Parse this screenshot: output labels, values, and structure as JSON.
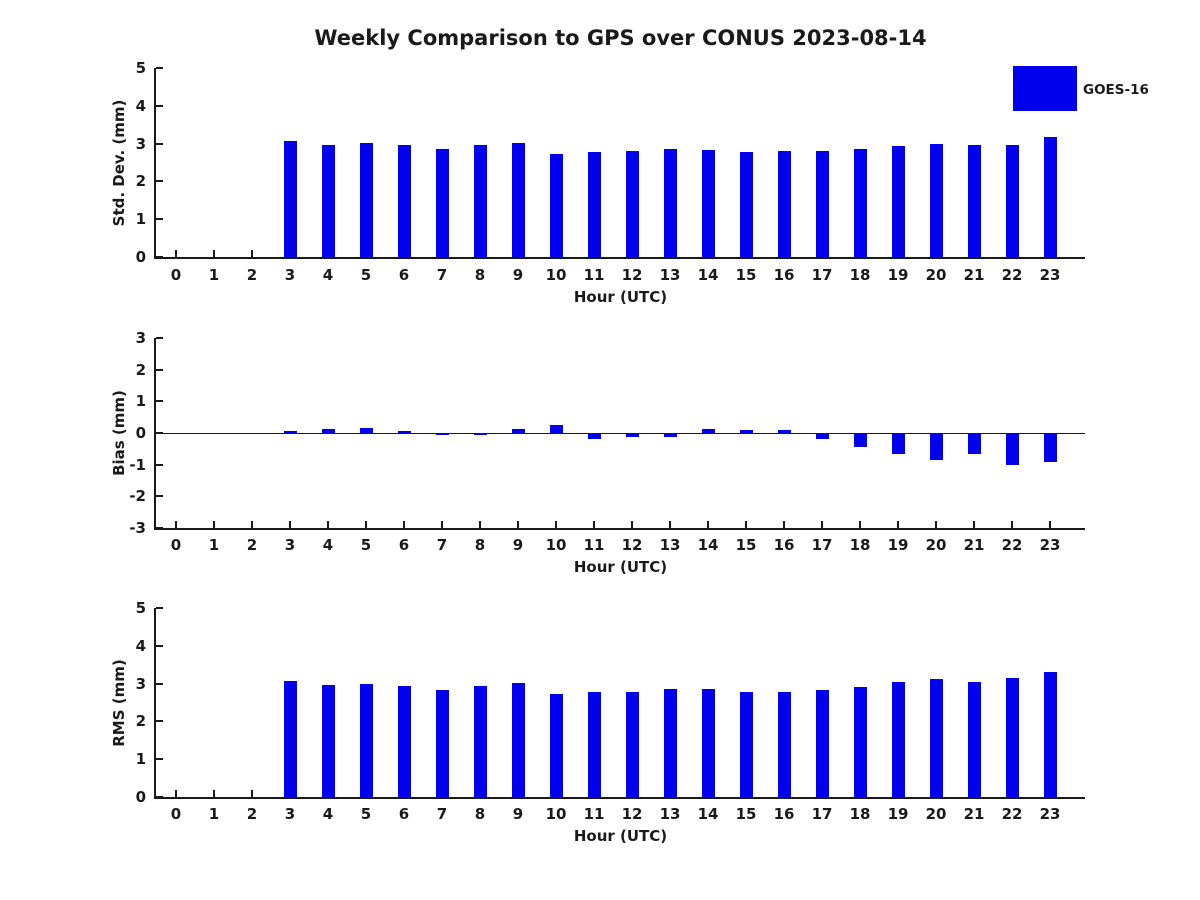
{
  "title": "Weekly Comparison to GPS over CONUS 2023-08-14",
  "legend": {
    "label": "GOES-16",
    "color": "#0000EE",
    "position": "top-right"
  },
  "chart_data": [
    {
      "id": "stddev",
      "type": "bar",
      "ylabel": "Std. Dev. (mm)",
      "xlabel": "Hour (UTC)",
      "ylim": [
        0,
        5
      ],
      "yticks": [
        0,
        1,
        2,
        3,
        4,
        5
      ],
      "grid": false,
      "categories": [
        0,
        1,
        2,
        3,
        4,
        5,
        6,
        7,
        8,
        9,
        10,
        11,
        12,
        13,
        14,
        15,
        16,
        17,
        18,
        19,
        20,
        21,
        22,
        23
      ],
      "series": [
        {
          "name": "GOES-16",
          "color": "#0000EE",
          "values": [
            null,
            null,
            null,
            3.07,
            2.96,
            3.02,
            2.96,
            2.86,
            2.96,
            3.01,
            2.72,
            2.77,
            2.8,
            2.87,
            2.83,
            2.78,
            2.81,
            2.81,
            2.87,
            2.94,
            2.99,
            2.95,
            2.97,
            3.18
          ]
        }
      ]
    },
    {
      "id": "bias",
      "type": "bar",
      "ylabel": "Bias (mm)",
      "xlabel": "Hour (UTC)",
      "ylim": [
        -3,
        3
      ],
      "yticks": [
        3,
        2,
        1,
        0,
        -1,
        -2,
        -3
      ],
      "grid": false,
      "zero_line": true,
      "categories": [
        0,
        1,
        2,
        3,
        4,
        5,
        6,
        7,
        8,
        9,
        10,
        11,
        12,
        13,
        14,
        15,
        16,
        17,
        18,
        19,
        20,
        21,
        22,
        23
      ],
      "series": [
        {
          "name": "GOES-16",
          "color": "#0000EE",
          "values": [
            null,
            null,
            null,
            0.06,
            0.14,
            0.17,
            0.05,
            -0.05,
            -0.05,
            0.14,
            0.25,
            -0.18,
            -0.12,
            -0.14,
            0.14,
            0.1,
            0.1,
            -0.2,
            -0.45,
            -0.65,
            -0.85,
            -0.65,
            -1.0,
            -0.9
          ]
        }
      ]
    },
    {
      "id": "rms",
      "type": "bar",
      "ylabel": "RMS (mm)",
      "xlabel": "Hour (UTC)",
      "ylim": [
        0,
        5
      ],
      "yticks": [
        0,
        1,
        2,
        3,
        4,
        5
      ],
      "grid": false,
      "categories": [
        0,
        1,
        2,
        3,
        4,
        5,
        6,
        7,
        8,
        9,
        10,
        11,
        12,
        13,
        14,
        15,
        16,
        17,
        18,
        19,
        20,
        21,
        22,
        23
      ],
      "series": [
        {
          "name": "GOES-16",
          "color": "#0000EE",
          "values": [
            null,
            null,
            null,
            3.06,
            2.96,
            2.99,
            2.94,
            2.84,
            2.94,
            3.01,
            2.73,
            2.78,
            2.79,
            2.87,
            2.86,
            2.79,
            2.79,
            2.83,
            2.91,
            3.03,
            3.12,
            3.04,
            3.15,
            3.3
          ]
        }
      ]
    }
  ]
}
